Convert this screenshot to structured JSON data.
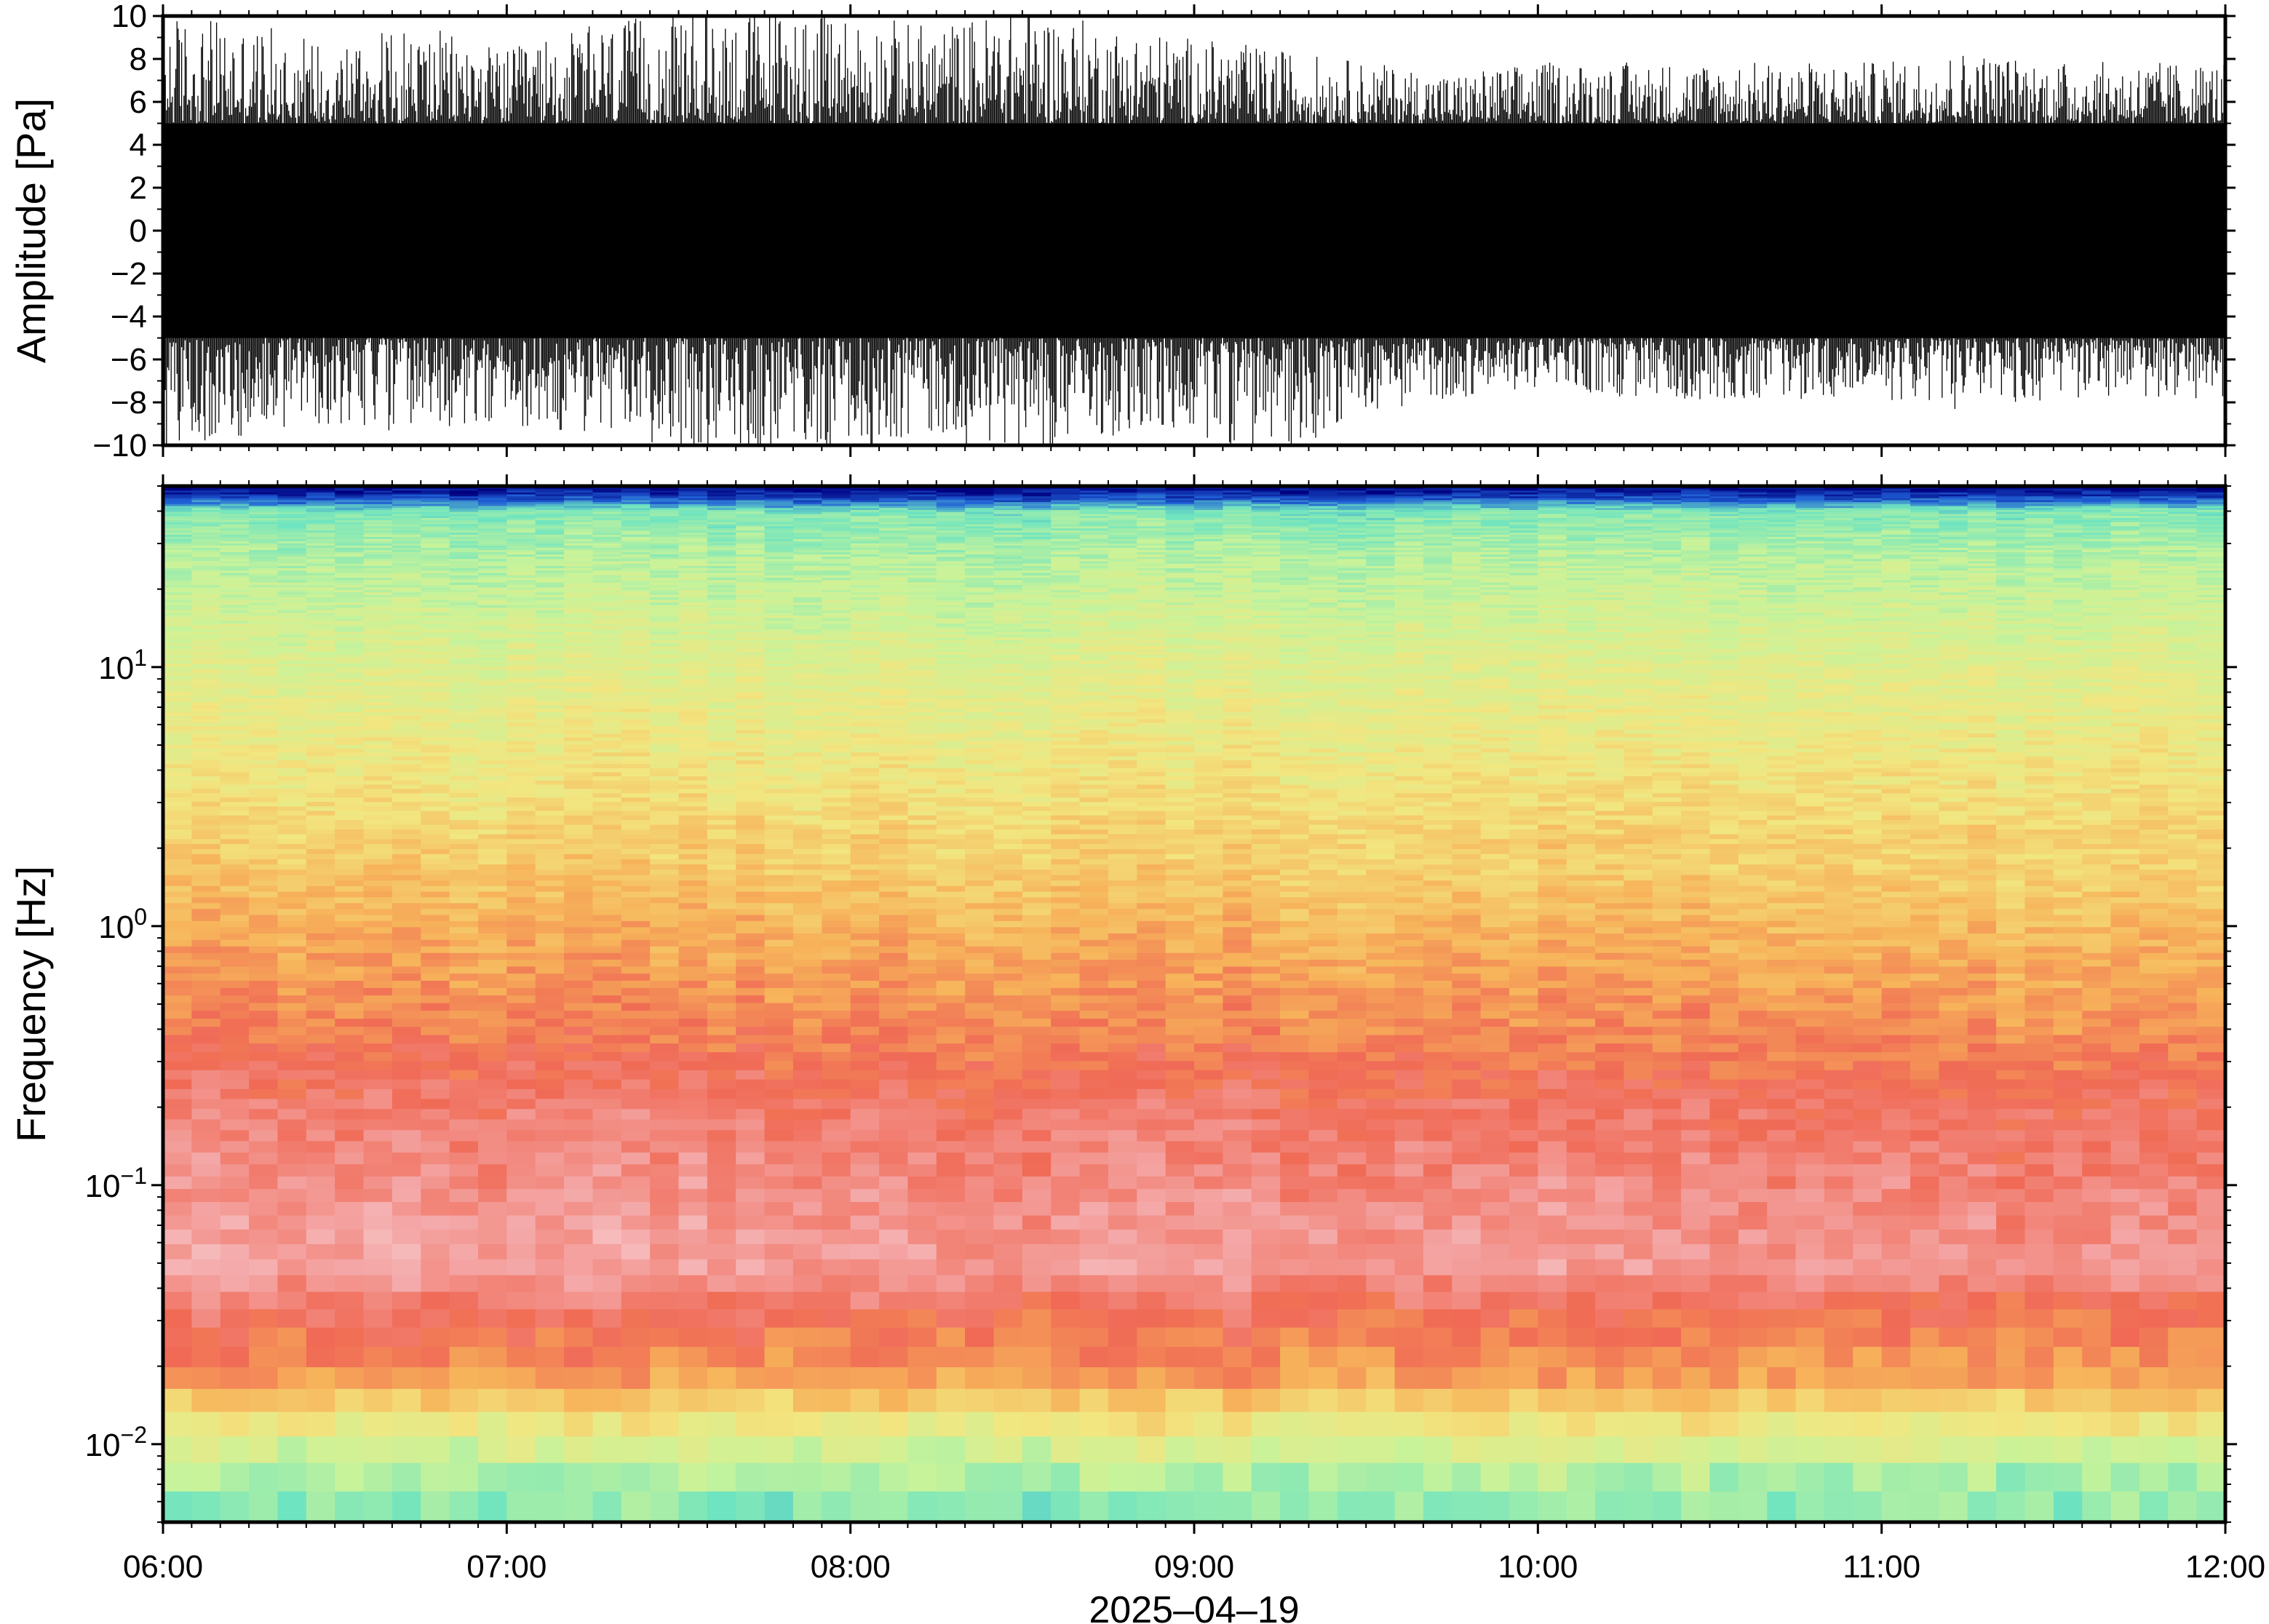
{
  "chart_data": [
    {
      "type": "line",
      "ylabel": "Amplitude [Pa]",
      "ylim": [
        -10,
        10
      ],
      "yticks": [
        10,
        8,
        6,
        4,
        2,
        0,
        -2,
        -4,
        -6,
        -8,
        -10
      ],
      "ytick_labels": [
        "10",
        "8",
        "6",
        "4",
        "2",
        "0",
        "−2",
        "−4",
        "−6",
        "−8",
        "−10"
      ],
      "xlim": [
        "06:00",
        "12:00"
      ],
      "series": [
        {
          "x": [
            "06:00",
            "06:15",
            "06:30",
            "06:45",
            "07:00",
            "07:15",
            "07:30",
            "07:45",
            "08:00",
            "08:15",
            "08:30",
            "08:45",
            "09:00",
            "09:15",
            "09:30",
            "09:45",
            "10:00",
            "10:15",
            "10:30",
            "10:45",
            "11:00",
            "11:15",
            "11:30",
            "11:45",
            "12:00"
          ],
          "envelope_max": [
            9.5,
            9.0,
            8.5,
            9.0,
            8.0,
            9.0,
            9.5,
            9.8,
            9.5,
            9.0,
            9.8,
            9.0,
            8.5,
            8.0,
            7.5,
            7.0,
            7.5,
            7.5,
            7.5,
            7.5,
            7.5,
            8.0,
            7.5,
            7.5,
            7.5
          ],
          "envelope_min": [
            -9.5,
            -9.0,
            -8.5,
            -9.0,
            -8.5,
            -9.0,
            -9.5,
            -9.8,
            -9.5,
            -9.0,
            -9.8,
            -9.0,
            -9.0,
            -9.8,
            -8.0,
            -7.5,
            -7.0,
            -7.5,
            -7.5,
            -7.5,
            -7.5,
            -8.0,
            -7.5,
            -7.5,
            -7.5
          ],
          "dense_band": [
            -5,
            5
          ],
          "color": "#000000"
        }
      ],
      "grid": false
    },
    {
      "type": "heatmap",
      "ylabel": "Frequency [Hz]",
      "xlabel": "2025–04–19",
      "yscale": "log",
      "ylim": [
        0.005,
        50
      ],
      "yticks": [
        0.01,
        0.1,
        1,
        10
      ],
      "ytick_labels": [
        {
          "base": "10",
          "exp": "−2"
        },
        {
          "base": "10",
          "exp": "−1"
        },
        {
          "base": "10",
          "exp": "0"
        },
        {
          "base": "10",
          "exp": "1"
        }
      ],
      "xticks": [
        "06:00",
        "07:00",
        "08:00",
        "09:00",
        "10:00",
        "11:00",
        "12:00"
      ],
      "x_start_hour": 6,
      "x_end_hour": 12,
      "colormap": [
        "#00007f",
        "#1f5fd6",
        "#6ee4c0",
        "#c8f39a",
        "#f2e680",
        "#f7b35a",
        "#f06a55",
        "#f4a7a7",
        "#fde8e8"
      ],
      "profile": [
        {
          "f": 0.005,
          "v": 0.28
        },
        {
          "f": 0.008,
          "v": 0.35
        },
        {
          "f": 0.011,
          "v": 0.46
        },
        {
          "f": 0.015,
          "v": 0.58
        },
        {
          "f": 0.02,
          "v": 0.7
        },
        {
          "f": 0.03,
          "v": 0.76
        },
        {
          "f": 0.05,
          "v": 0.88
        },
        {
          "f": 0.1,
          "v": 0.84
        },
        {
          "f": 0.2,
          "v": 0.8
        },
        {
          "f": 0.4,
          "v": 0.72
        },
        {
          "f": 1,
          "v": 0.64
        },
        {
          "f": 3,
          "v": 0.52
        },
        {
          "f": 10,
          "v": 0.44
        },
        {
          "f": 25,
          "v": 0.36
        },
        {
          "f": 40,
          "v": 0.28
        },
        {
          "f": 45,
          "v": 0.1
        },
        {
          "f": 50,
          "v": 0.0
        }
      ],
      "grid": false
    }
  ]
}
